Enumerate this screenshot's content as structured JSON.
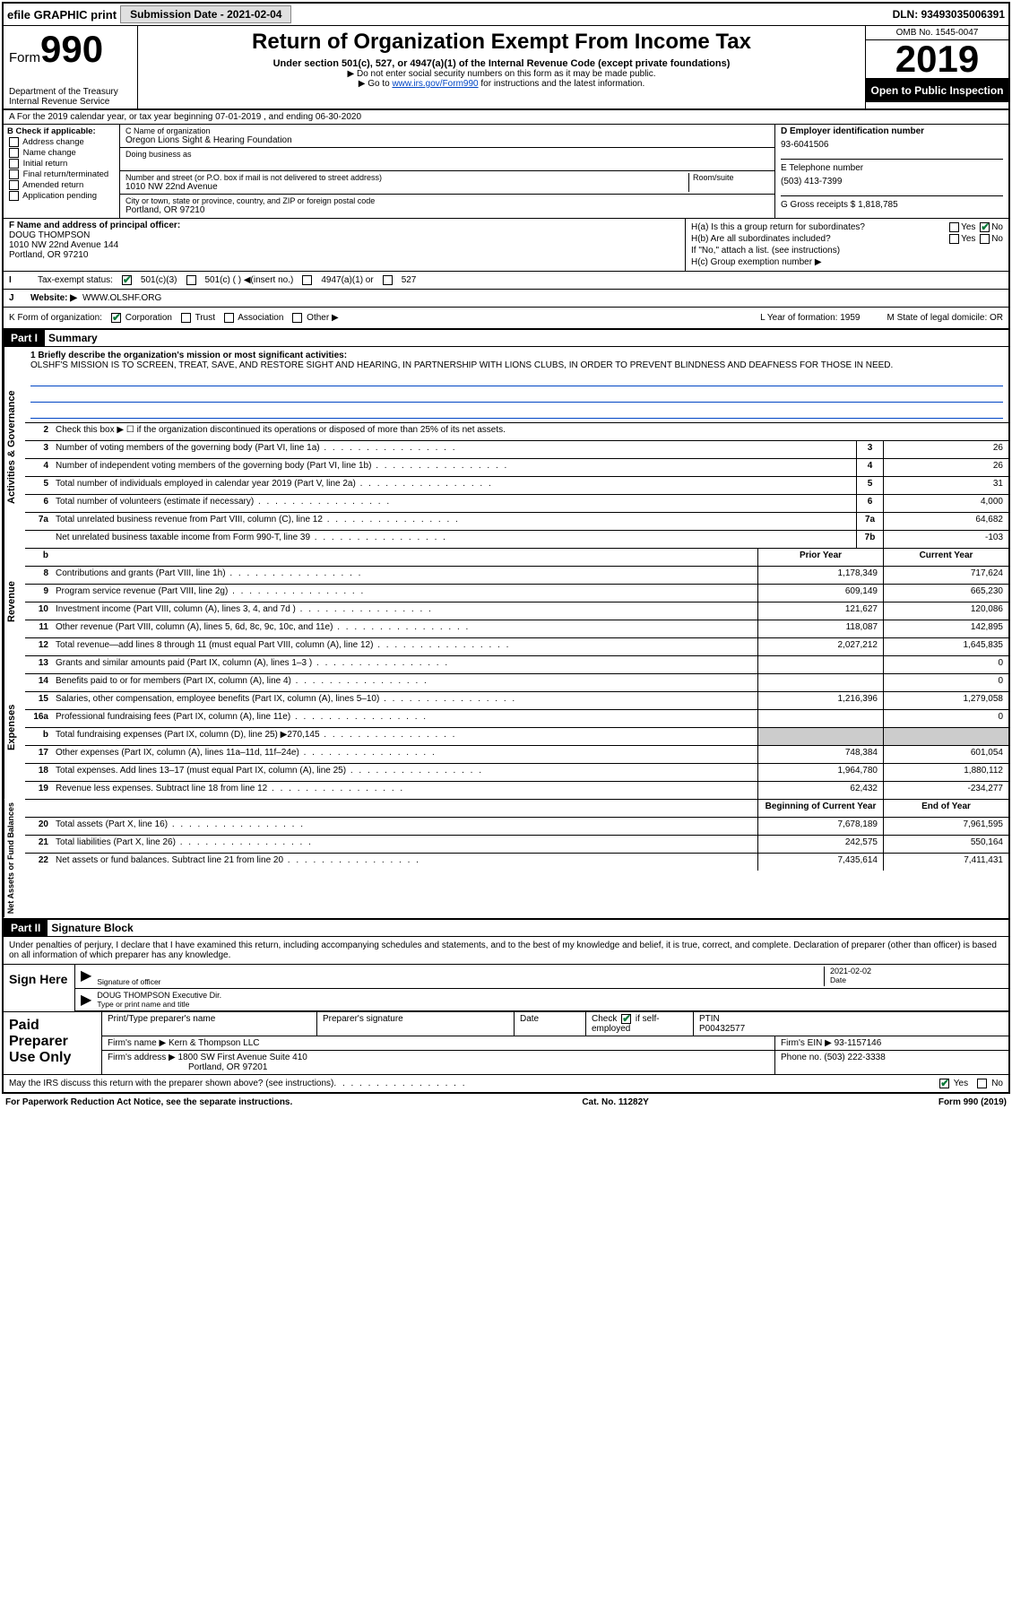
{
  "topbar": {
    "efile": "efile GRAPHIC print",
    "submission_label": "Submission Date - 2021-02-04",
    "dln": "DLN: 93493035006391"
  },
  "header": {
    "form_label": "Form",
    "form_number": "990",
    "dept": "Department of the Treasury\nInternal Revenue Service",
    "title": "Return of Organization Exempt From Income Tax",
    "sub1": "Under section 501(c), 527, or 4947(a)(1) of the Internal Revenue Code (except private foundations)",
    "sub2": "▶ Do not enter social security numbers on this form as it may be made public.",
    "sub3_pre": "▶ Go to ",
    "sub3_link": "www.irs.gov/Form990",
    "sub3_post": " for instructions and the latest information.",
    "omb": "OMB No. 1545-0047",
    "year": "2019",
    "inspection": "Open to Public Inspection"
  },
  "line_a": "A For the 2019 calendar year, or tax year beginning 07-01-2019   , and ending 06-30-2020",
  "col_b": {
    "title": "B Check if applicable:",
    "items": [
      "Address change",
      "Name change",
      "Initial return",
      "Final return/terminated",
      "Amended return",
      "Application pending"
    ]
  },
  "col_c": {
    "name_label": "C Name of organization",
    "name": "Oregon Lions Sight & Hearing Foundation",
    "dba_label": "Doing business as",
    "dba": "",
    "addr_label": "Number and street (or P.O. box if mail is not delivered to street address)",
    "room_label": "Room/suite",
    "addr": "1010 NW 22nd Avenue",
    "city_label": "City or town, state or province, country, and ZIP or foreign postal code",
    "city": "Portland, OR  97210"
  },
  "col_d": {
    "ein_label": "D Employer identification number",
    "ein": "93-6041506",
    "phone_label": "E Telephone number",
    "phone": "(503) 413-7399",
    "gross_label": "G Gross receipts $ 1,818,785"
  },
  "col_f": {
    "label": "F  Name and address of principal officer:",
    "name": "DOUG THOMPSON",
    "addr1": "1010 NW 22nd Avenue 144",
    "addr2": "Portland, OR  97210"
  },
  "col_h": {
    "ha_label": "H(a)  Is this a group return for subordinates?",
    "ha_yes": "Yes",
    "ha_no": "No",
    "hb_label": "H(b)  Are all subordinates included?",
    "hb_yes": "Yes",
    "hb_no": "No",
    "hb_note": "If \"No,\" attach a list. (see instructions)",
    "hc_label": "H(c)  Group exemption number ▶"
  },
  "row_i": {
    "label": "Tax-exempt status:",
    "opts": [
      "501(c)(3)",
      "501(c) (  ) ◀(insert no.)",
      "4947(a)(1) or",
      "527"
    ]
  },
  "row_j": {
    "label": "J",
    "website_label": "Website: ▶",
    "website": "WWW.OLSHF.ORG"
  },
  "row_k": {
    "label": "K Form of organization:",
    "opts": [
      "Corporation",
      "Trust",
      "Association",
      "Other ▶"
    ],
    "l": "L Year of formation: 1959",
    "m": "M State of legal domicile: OR"
  },
  "parts": {
    "p1": "Part I",
    "p1_title": "Summary",
    "p2": "Part II",
    "p2_title": "Signature Block"
  },
  "mission": {
    "label": "1  Briefly describe the organization's mission or most significant activities:",
    "text": "OLSHF'S MISSION IS TO SCREEN, TREAT, SAVE, AND RESTORE SIGHT AND HEARING, IN PARTNERSHIP WITH LIONS CLUBS, IN ORDER TO PREVENT BLINDNESS AND DEAFNESS FOR THOSE IN NEED."
  },
  "vtabs": {
    "gov": "Activities & Governance",
    "rev": "Revenue",
    "exp": "Expenses",
    "net": "Net Assets or Fund Balances"
  },
  "lines_gov": [
    {
      "n": "2",
      "d": "Check this box ▶ ☐ if the organization discontinued its operations or disposed of more than 25% of its net assets."
    },
    {
      "n": "3",
      "d": "Number of voting members of the governing body (Part VI, line 1a)",
      "box": "3",
      "v": "26"
    },
    {
      "n": "4",
      "d": "Number of independent voting members of the governing body (Part VI, line 1b)",
      "box": "4",
      "v": "26"
    },
    {
      "n": "5",
      "d": "Total number of individuals employed in calendar year 2019 (Part V, line 2a)",
      "box": "5",
      "v": "31"
    },
    {
      "n": "6",
      "d": "Total number of volunteers (estimate if necessary)",
      "box": "6",
      "v": "4,000"
    },
    {
      "n": "7a",
      "d": "Total unrelated business revenue from Part VIII, column (C), line 12",
      "box": "7a",
      "v": "64,682"
    },
    {
      "n": "",
      "d": "Net unrelated business taxable income from Form 990-T, line 39",
      "box": "7b",
      "v": "-103"
    }
  ],
  "col_headers": {
    "b": "b",
    "prior": "Prior Year",
    "current": "Current Year"
  },
  "lines_rev": [
    {
      "n": "8",
      "d": "Contributions and grants (Part VIII, line 1h)",
      "p": "1,178,349",
      "c": "717,624"
    },
    {
      "n": "9",
      "d": "Program service revenue (Part VIII, line 2g)",
      "p": "609,149",
      "c": "665,230"
    },
    {
      "n": "10",
      "d": "Investment income (Part VIII, column (A), lines 3, 4, and 7d )",
      "p": "121,627",
      "c": "120,086"
    },
    {
      "n": "11",
      "d": "Other revenue (Part VIII, column (A), lines 5, 6d, 8c, 9c, 10c, and 11e)",
      "p": "118,087",
      "c": "142,895"
    },
    {
      "n": "12",
      "d": "Total revenue—add lines 8 through 11 (must equal Part VIII, column (A), line 12)",
      "p": "2,027,212",
      "c": "1,645,835"
    }
  ],
  "lines_exp": [
    {
      "n": "13",
      "d": "Grants and similar amounts paid (Part IX, column (A), lines 1–3 )",
      "p": "",
      "c": "0"
    },
    {
      "n": "14",
      "d": "Benefits paid to or for members (Part IX, column (A), line 4)",
      "p": "",
      "c": "0"
    },
    {
      "n": "15",
      "d": "Salaries, other compensation, employee benefits (Part IX, column (A), lines 5–10)",
      "p": "1,216,396",
      "c": "1,279,058"
    },
    {
      "n": "16a",
      "d": "Professional fundraising fees (Part IX, column (A), line 11e)",
      "p": "",
      "c": "0"
    },
    {
      "n": "b",
      "d": "Total fundraising expenses (Part IX, column (D), line 25) ▶270,145",
      "p": "shade",
      "c": "shade"
    },
    {
      "n": "17",
      "d": "Other expenses (Part IX, column (A), lines 11a–11d, 11f–24e)",
      "p": "748,384",
      "c": "601,054"
    },
    {
      "n": "18",
      "d": "Total expenses. Add lines 13–17 (must equal Part IX, column (A), line 25)",
      "p": "1,964,780",
      "c": "1,880,112"
    },
    {
      "n": "19",
      "d": "Revenue less expenses. Subtract line 18 from line 12",
      "p": "62,432",
      "c": "-234,277"
    }
  ],
  "net_headers": {
    "begin": "Beginning of Current Year",
    "end": "End of Year"
  },
  "lines_net": [
    {
      "n": "20",
      "d": "Total assets (Part X, line 16)",
      "p": "7,678,189",
      "c": "7,961,595"
    },
    {
      "n": "21",
      "d": "Total liabilities (Part X, line 26)",
      "p": "242,575",
      "c": "550,164"
    },
    {
      "n": "22",
      "d": "Net assets or fund balances. Subtract line 21 from line 20",
      "p": "7,435,614",
      "c": "7,411,431"
    }
  ],
  "sig_text": "Under penalties of perjury, I declare that I have examined this return, including accompanying schedules and statements, and to the best of my knowledge and belief, it is true, correct, and complete. Declaration of preparer (other than officer) is based on all information of which preparer has any knowledge.",
  "sign": {
    "here": "Sign Here",
    "sig_label": "Signature of officer",
    "date": "2021-02-02",
    "date_label": "Date",
    "name": "DOUG THOMPSON  Executive Dir.",
    "name_label": "Type or print name and title"
  },
  "prep": {
    "title": "Paid Preparer Use Only",
    "h1": "Print/Type preparer's name",
    "h2": "Preparer's signature",
    "h3": "Date",
    "h4": "Check ☑ if self-employed",
    "h5": "PTIN",
    "ptin": "P00432577",
    "firm_label": "Firm's name    ▶",
    "firm": "Kern & Thompson LLC",
    "ein_label": "Firm's EIN ▶",
    "ein": "93-1157146",
    "addr_label": "Firm's address ▶",
    "addr1": "1800 SW First Avenue Suite 410",
    "addr2": "Portland, OR  97201",
    "phone_label": "Phone no.",
    "phone": "(503) 222-3338"
  },
  "footer": {
    "discuss": "May the IRS discuss this return with the preparer shown above? (see instructions)",
    "yes": "Yes",
    "no": "No",
    "paperwork": "For Paperwork Reduction Act Notice, see the separate instructions.",
    "cat": "Cat. No. 11282Y",
    "form": "Form 990 (2019)"
  }
}
